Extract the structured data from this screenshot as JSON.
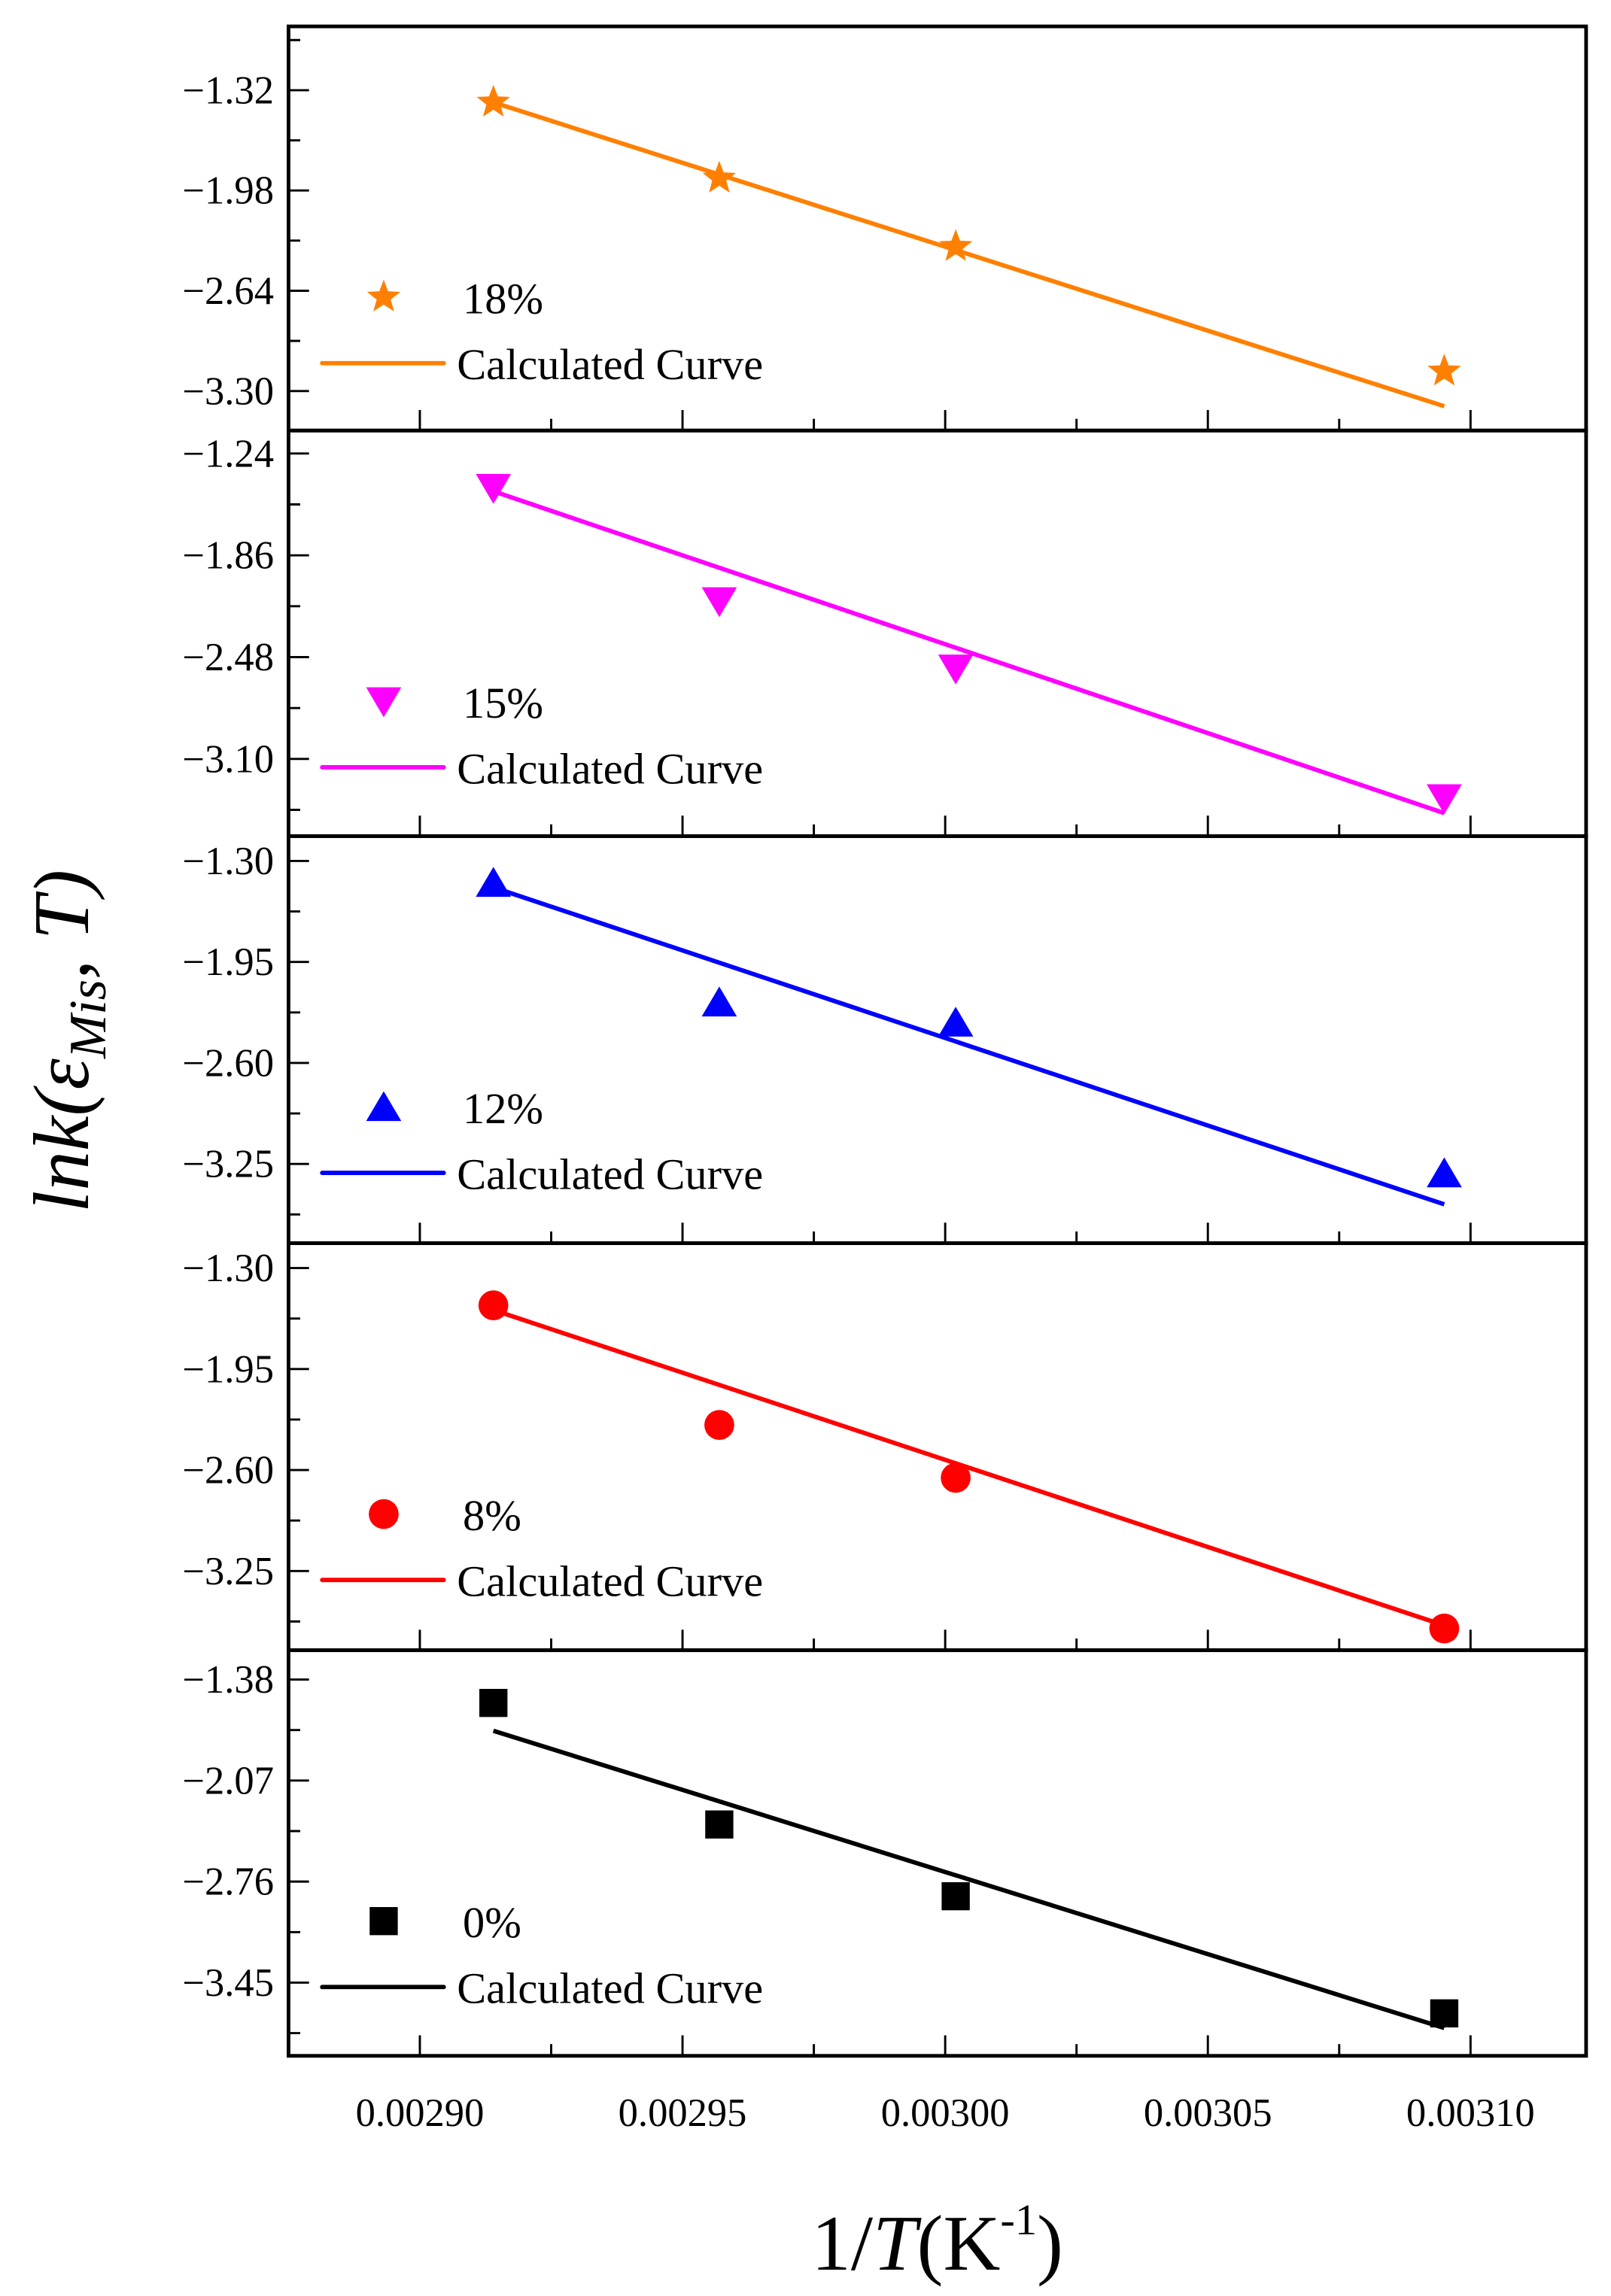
{
  "chart_data": {
    "type": "scatter",
    "layout": "5 vertically stacked panels sharing x axis",
    "xlabel": "1/T(K-1)",
    "xlabel_parts": {
      "main": "1/",
      "italic": "T",
      "unit": "(K",
      "sup": "-1",
      "close": ")"
    },
    "ylabel": "lnk(εMis, T)",
    "ylabel_parts": {
      "main": "lnk(ε",
      "sub": "Mis",
      "tail": ", T)"
    },
    "xlim": [
      0.002875,
      0.003122
    ],
    "xticks": [
      0.0029,
      0.00295,
      0.003,
      0.00305,
      0.0031
    ],
    "xtick_labels": [
      "0.00290",
      "0.00295",
      "0.00300",
      "0.00305",
      "0.00310"
    ],
    "x": [
      0.002914,
      0.002957,
      0.003002,
      0.003095
    ],
    "panels": [
      {
        "name": "18%",
        "color": "#FF8000",
        "marker": "star",
        "ylim": [
          -3.56,
          -0.9
        ],
        "yticks": [
          -1.32,
          -1.98,
          -2.64,
          -3.3
        ],
        "ytick_labels": [
          "−1.32",
          "−1.98",
          "−2.64",
          "−3.30"
        ],
        "values": [
          -1.4,
          -1.9,
          -2.35,
          -3.17
        ],
        "fit": [
          -1.4,
          -3.4
        ],
        "legend_points": "18%",
        "legend_line": "Calculated Curve"
      },
      {
        "name": "15%",
        "color": "#FF00FF",
        "marker": "triangle-down",
        "ylim": [
          -3.57,
          -1.1
        ],
        "yticks": [
          -1.24,
          -1.86,
          -2.48,
          -3.1
        ],
        "ytick_labels": [
          "−1.24",
          "−1.86",
          "−2.48",
          "−3.10"
        ],
        "values": [
          -1.45,
          -2.14,
          -2.55,
          -3.34
        ],
        "fit": [
          -1.47,
          -3.43
        ],
        "legend_points": "15%",
        "legend_line": "Calculated Curve"
      },
      {
        "name": "12%",
        "color": "#0000FF",
        "marker": "triangle-up",
        "ylim": [
          -3.76,
          -1.14
        ],
        "yticks": [
          -1.3,
          -1.95,
          -2.6,
          -3.25
        ],
        "ytick_labels": [
          "−1.30",
          "−1.95",
          "−2.60",
          "−3.25"
        ],
        "values": [
          -1.44,
          -2.21,
          -2.34,
          -3.31
        ],
        "fit": [
          -1.47,
          -3.51
        ],
        "legend_points": "12%",
        "legend_line": "Calculated Curve"
      },
      {
        "name": "8%",
        "color": "#FF0000",
        "marker": "circle",
        "ylim": [
          -3.76,
          -1.14
        ],
        "yticks": [
          -1.3,
          -1.95,
          -2.6,
          -3.25
        ],
        "ytick_labels": [
          "−1.30",
          "−1.95",
          "−2.60",
          "−3.25"
        ],
        "values": [
          -1.54,
          -2.31,
          -2.65,
          -3.62
        ],
        "fit": [
          -1.57,
          -3.6
        ],
        "legend_points": "8%",
        "legend_line": "Calculated Curve"
      },
      {
        "name": "0%",
        "color": "#000000",
        "marker": "square",
        "ylim": [
          -3.95,
          -1.18
        ],
        "yticks": [
          -1.38,
          -2.07,
          -2.76,
          -3.45
        ],
        "ytick_labels": [
          "−1.38",
          "−2.07",
          "−2.76",
          "−3.45"
        ],
        "values": [
          -1.54,
          -2.37,
          -2.86,
          -3.66
        ],
        "fit": [
          -1.73,
          -3.76
        ],
        "legend_points": "0%",
        "legend_line": "Calculated Curve"
      }
    ]
  }
}
